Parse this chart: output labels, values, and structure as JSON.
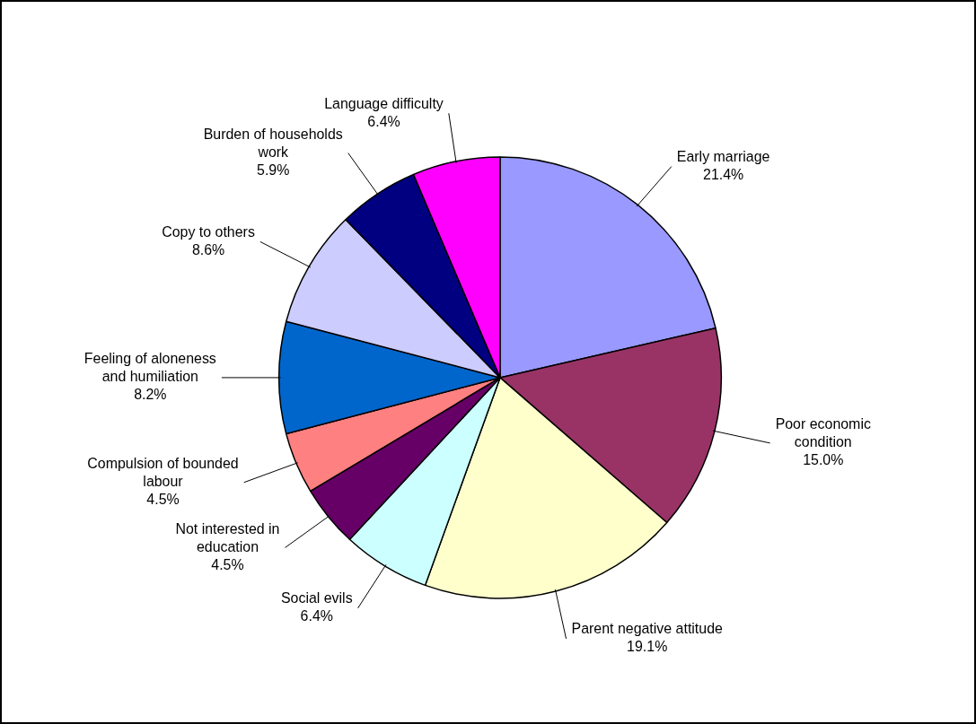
{
  "chart_data": {
    "type": "pie",
    "categories": [
      "Early marriage",
      "Poor economic condition",
      "Parent negative attitude",
      "Social evils",
      "Not interested in education",
      "Compulsion of bounded labour",
      "Feeling of aloneness and humiliation",
      "Copy to others",
      "Burden of households work",
      "Language difficulty"
    ],
    "values": [
      21.4,
      15.0,
      19.1,
      6.4,
      4.5,
      4.5,
      8.2,
      8.6,
      5.9,
      6.4
    ],
    "value_labels": [
      "21.4%",
      "15.0%",
      "19.1%",
      "6.4%",
      "4.5%",
      "4.5%",
      "8.2%",
      "8.6%",
      "5.9%",
      "6.4%"
    ],
    "colors": [
      "#9999ff",
      "#993366",
      "#ffffcc",
      "#ccffff",
      "#660066",
      "#ff8080",
      "#0066cc",
      "#ccccff",
      "#000080",
      "#ff00ff"
    ],
    "legend": false
  }
}
